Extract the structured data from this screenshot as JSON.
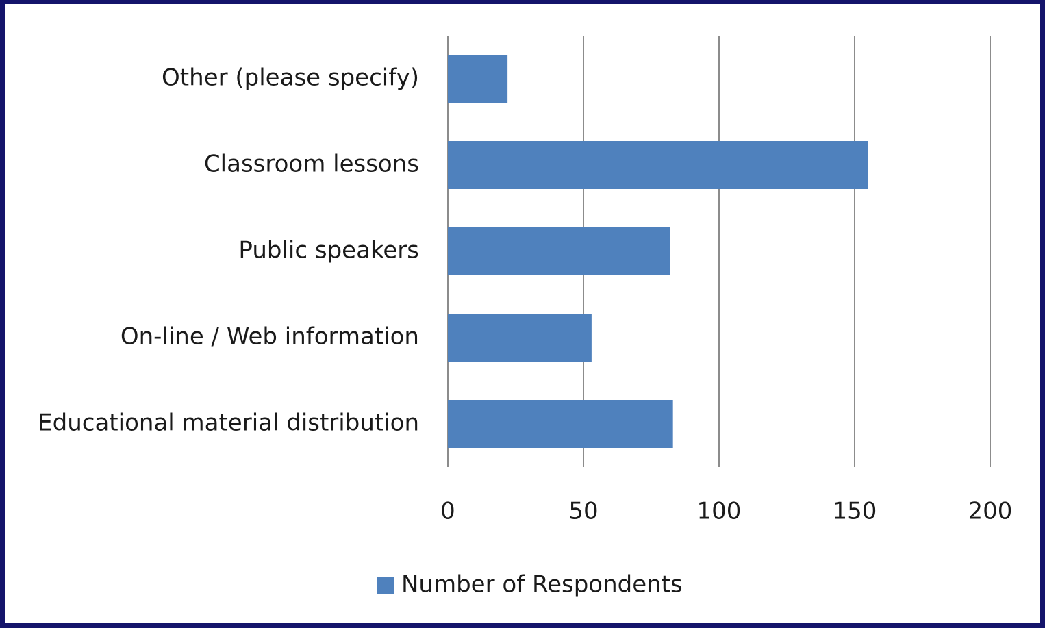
{
  "chart_data": {
    "type": "bar",
    "orientation": "horizontal",
    "categories": [
      "Other (please specify)",
      "Classroom lessons",
      "Public speakers",
      "On-line / Web information",
      "Educational material distribution"
    ],
    "series": [
      {
        "name": "Number of Respondents",
        "color": "#4f81bd",
        "values": [
          22,
          155,
          82,
          53,
          83
        ]
      }
    ],
    "xlim": [
      0,
      200
    ],
    "xticks": [
      0,
      50,
      100,
      150,
      200
    ],
    "grid": true,
    "legend": "bottom"
  }
}
